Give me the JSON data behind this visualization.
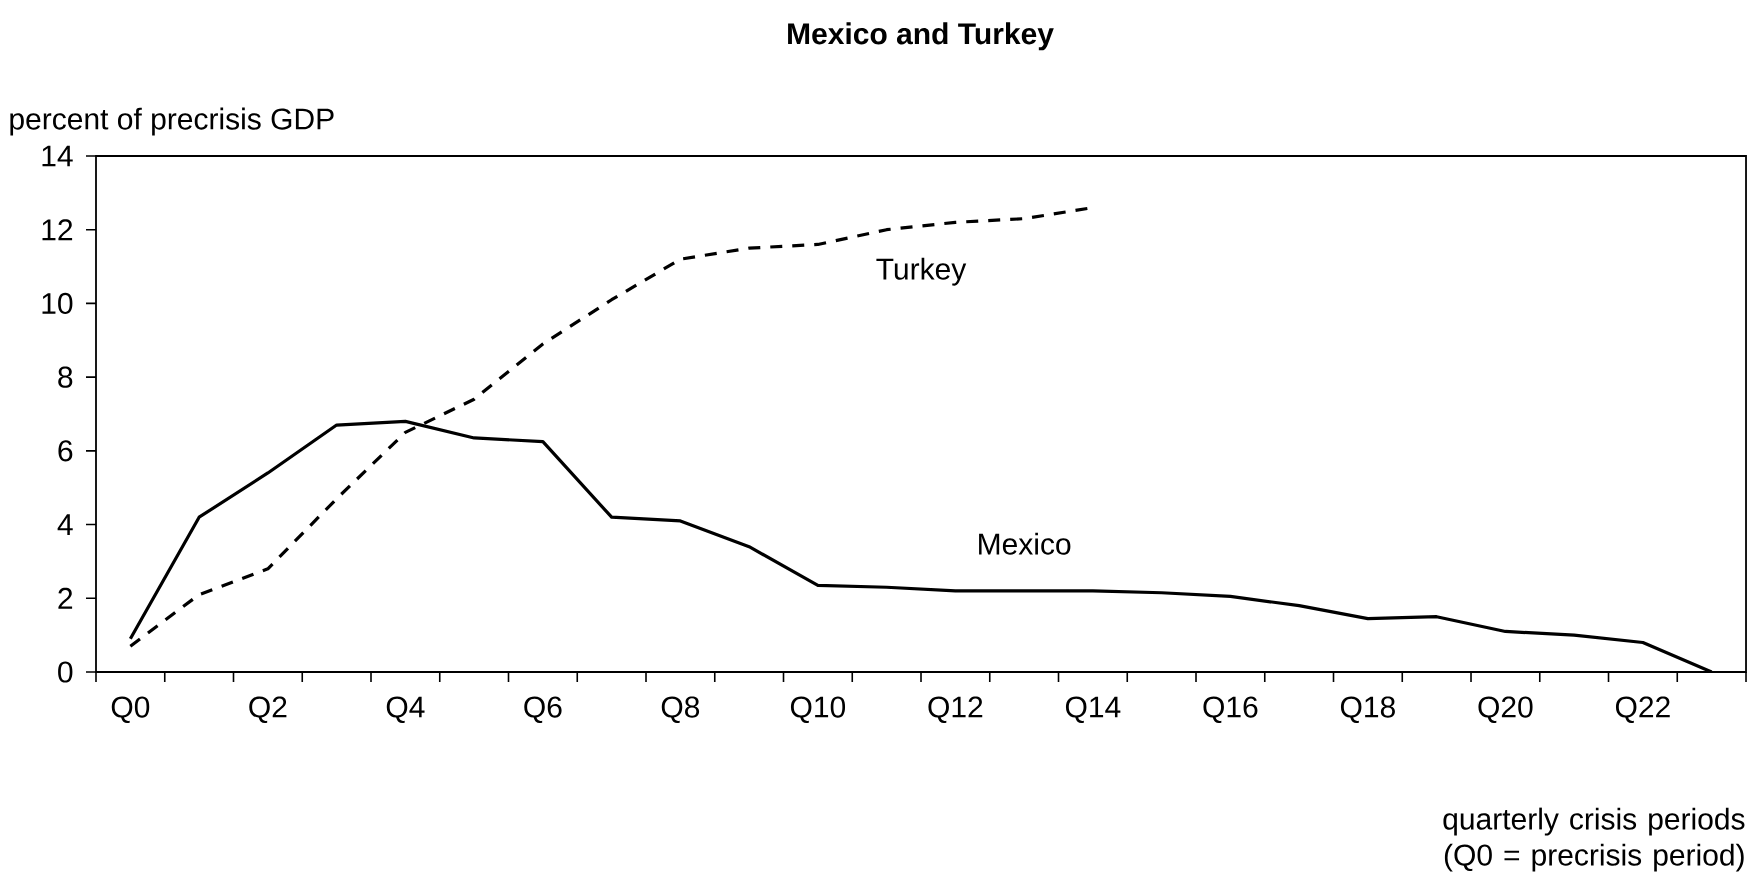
{
  "chart_data": {
    "type": "line",
    "title": "Mexico and Turkey",
    "ylabel": "percent of precrisis GDP",
    "xlabel": "quarterly crisis periods (Q0 = precrisis period)",
    "categories": [
      "Q0",
      null,
      "Q2",
      null,
      "Q4",
      null,
      "Q6",
      null,
      "Q8",
      null,
      "Q10",
      null,
      "Q12",
      null,
      "Q14",
      null,
      "Q16",
      null,
      "Q18",
      null,
      "Q20",
      null,
      "Q22",
      null
    ],
    "series": [
      {
        "name": "Mexico",
        "color": "#000000",
        "line_style": "solid",
        "values": [
          0.9,
          4.2,
          5.4,
          6.7,
          6.8,
          6.35,
          6.25,
          4.2,
          4.1,
          3.4,
          2.35,
          2.3,
          2.2,
          2.2,
          2.2,
          2.15,
          2.05,
          1.8,
          1.45,
          1.5,
          1.1,
          1.0,
          0.8,
          0
        ]
      },
      {
        "name": "Turkey",
        "color": "#000000",
        "line_style": "dashed",
        "values": [
          0.7,
          2.1,
          2.8,
          4.7,
          6.5,
          7.4,
          8.9,
          10.1,
          11.2,
          11.5,
          11.6,
          12.0,
          12.2,
          12.3,
          12.6,
          null,
          null,
          null,
          null,
          null,
          null,
          null,
          null,
          null
        ]
      }
    ],
    "ylim": [
      0,
      14
    ],
    "yticks": [
      0,
      2,
      4,
      6,
      8,
      10,
      12,
      14
    ]
  }
}
